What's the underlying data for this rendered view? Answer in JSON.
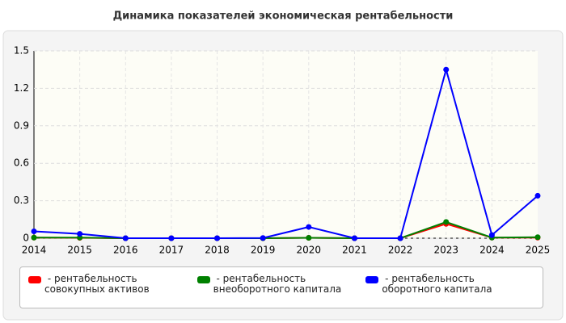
{
  "chart_data": {
    "type": "line",
    "title": "Динамика показателей экономическая рентабельности",
    "categories": [
      "2014",
      "2015",
      "2016",
      "2017",
      "2018",
      "2019",
      "2020",
      "2021",
      "2022",
      "2023",
      "2024",
      "2025"
    ],
    "series": [
      {
        "name": "рентабельность совокупных активов",
        "color": "#ff0000",
        "values": [
          0.005,
          0.003,
          0,
          0,
          0,
          0,
          0.003,
          0,
          0,
          0.115,
          0.005,
          0.005
        ]
      },
      {
        "name": "рентабельность внеоборотного капитала",
        "color": "#008000",
        "values": [
          0.005,
          0.005,
          0,
          0,
          0,
          0,
          0.003,
          0,
          0,
          0.13,
          0.005,
          0.008
        ]
      },
      {
        "name": "рентабельность оборотного капитала",
        "color": "#0000ff",
        "values": [
          0.055,
          0.035,
          0,
          0,
          0,
          0.002,
          0.09,
          0,
          0,
          1.35,
          0.025,
          0.34
        ]
      }
    ],
    "ylim": [
      0,
      1.5
    ],
    "yticks": [
      0,
      0.3,
      0.6,
      0.9,
      1.2,
      1.5
    ],
    "grid": true
  }
}
